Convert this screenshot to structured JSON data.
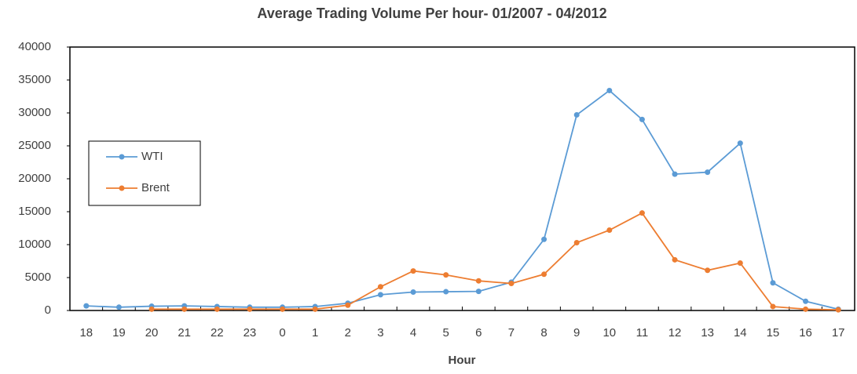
{
  "chart_data": {
    "type": "line",
    "title": "Average Trading Volume Per hour- 01/2007 - 04/2012",
    "x_label": "Hour",
    "categories": [
      "18",
      "19",
      "20",
      "21",
      "22",
      "23",
      "0",
      "1",
      "2",
      "3",
      "4",
      "5",
      "6",
      "7",
      "8",
      "9",
      "10",
      "11",
      "12",
      "13",
      "14",
      "15",
      "16",
      "17"
    ],
    "series": [
      {
        "name": "WTI",
        "color": "#5b9bd5",
        "values": [
          700,
          500,
          650,
          700,
          600,
          500,
          500,
          600,
          1100,
          2400,
          2800,
          2850,
          2900,
          4300,
          10800,
          29700,
          33400,
          29000,
          20700,
          21000,
          25400,
          4200,
          1400,
          200
        ]
      },
      {
        "name": "Brent",
        "color": "#ed7d31",
        "values": [
          null,
          null,
          200,
          200,
          200,
          200,
          200,
          200,
          800,
          3600,
          6000,
          5400,
          4500,
          4100,
          5500,
          10300,
          12200,
          14800,
          7700,
          6100,
          7200,
          600,
          200,
          100
        ]
      }
    ],
    "ylim": [
      0,
      40000
    ],
    "yticks": [
      0,
      5000,
      10000,
      15000,
      20000,
      25000,
      30000,
      35000,
      40000
    ],
    "grid": false,
    "legend": "left"
  }
}
